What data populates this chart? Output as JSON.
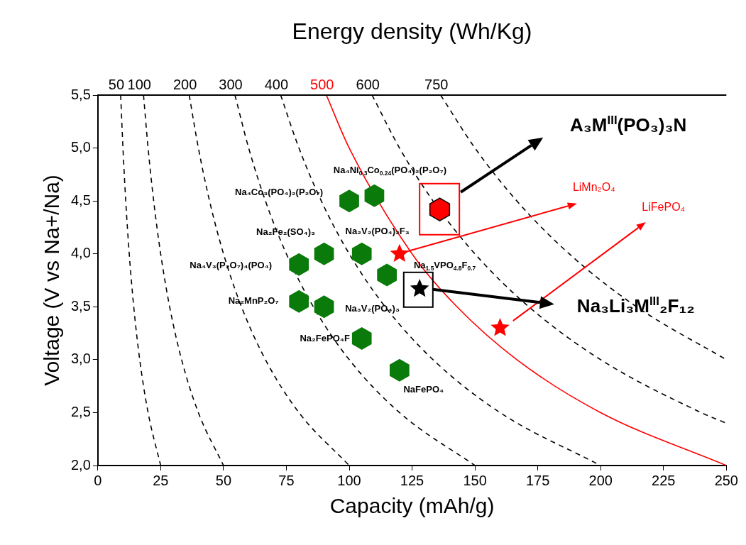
{
  "chart_data": {
    "type": "scatter",
    "xlabel": "Capacity (mAh/g)",
    "ylabel": "Voltage (V vs Na+/Na)",
    "x2label": "Energy density (Wh/Kg)",
    "xlim": [
      0,
      250
    ],
    "xticks": [
      0,
      25,
      50,
      75,
      100,
      125,
      150,
      175,
      200,
      225,
      250
    ],
    "ylim": [
      2,
      5.5
    ],
    "yticks": [
      {
        "value": 2,
        "label": "2,0"
      },
      {
        "value": 2.5,
        "label": "2,5"
      },
      {
        "value": 3,
        "label": "3,0"
      },
      {
        "value": 3.5,
        "label": "3,5"
      },
      {
        "value": 4,
        "label": "4,0"
      },
      {
        "value": 4.5,
        "label": "4,5"
      },
      {
        "value": 5,
        "label": "5,0"
      },
      {
        "value": 5.5,
        "label": "5,5"
      }
    ],
    "grid": false,
    "legend": false,
    "series": [
      {
        "type": "line",
        "name": "50",
        "color": "#000000",
        "line_style": "dashed",
        "marker": "none",
        "x": [
          9.09,
          10,
          11.11,
          12.5,
          14.29,
          16.67,
          20,
          25
        ],
        "values": [
          5.5,
          5,
          4.5,
          4,
          3.5,
          3,
          2.5,
          2
        ]
      },
      {
        "type": "line",
        "name": "100",
        "color": "#000000",
        "line_style": "dashed",
        "marker": "none",
        "x": [
          18.18,
          20,
          22.22,
          25,
          28.57,
          33.33,
          40,
          50
        ],
        "values": [
          5.5,
          5,
          4.5,
          4,
          3.5,
          3,
          2.5,
          2
        ]
      },
      {
        "type": "line",
        "name": "200",
        "color": "#000000",
        "line_style": "dashed",
        "marker": "none",
        "x": [
          36.36,
          40,
          44.44,
          50,
          57.14,
          66.67,
          80,
          100
        ],
        "values": [
          5.5,
          5,
          4.5,
          4,
          3.5,
          3,
          2.5,
          2
        ]
      },
      {
        "type": "line",
        "name": "300",
        "color": "#000000",
        "line_style": "dashed",
        "marker": "none",
        "x": [
          54.55,
          60,
          66.67,
          75,
          85.71,
          100,
          120,
          150
        ],
        "values": [
          5.5,
          5,
          4.5,
          4,
          3.5,
          3,
          2.5,
          2
        ]
      },
      {
        "type": "line",
        "name": "400",
        "color": "#000000",
        "line_style": "dashed",
        "marker": "none",
        "x": [
          72.73,
          80,
          88.89,
          100,
          114.29,
          133.33,
          160,
          200
        ],
        "values": [
          5.5,
          5,
          4.5,
          4,
          3.5,
          3,
          2.5,
          2
        ]
      },
      {
        "type": "line",
        "name": "500",
        "color": "#ff0000",
        "line_style": "solid",
        "marker": "none",
        "x": [
          90.91,
          100,
          125,
          142.86,
          166.67,
          200,
          250
        ],
        "values": [
          5.5,
          5,
          4,
          3.5,
          3,
          2.5,
          2
        ]
      },
      {
        "type": "line",
        "name": "600",
        "color": "#000000",
        "line_style": "dashed",
        "marker": "none",
        "x": [
          109.09,
          120,
          133.33,
          150,
          171.43,
          200,
          240,
          250
        ],
        "values": [
          5.5,
          5,
          4.5,
          4,
          3.5,
          3,
          2.5,
          2.4
        ]
      },
      {
        "type": "line",
        "name": "750",
        "color": "#000000",
        "line_style": "dashed",
        "marker": "none",
        "x": [
          136.36,
          150,
          166.67,
          187.5,
          214.29,
          250
        ],
        "values": [
          5.5,
          5,
          4.5,
          4,
          3.5,
          3
        ]
      },
      {
        "color": "#0a7a0a",
        "x": [
          110,
          100,
          90,
          105,
          80,
          115,
          80,
          90,
          105,
          120
        ],
        "values": [
          4.55,
          4.5,
          4.0,
          4.0,
          3.9,
          3.8,
          3.55,
          3.5,
          3.2,
          2.9
        ]
      },
      {
        "color": "#ff0000",
        "x": [
          136
        ],
        "values": [
          4.42
        ]
      },
      {
        "color": "#ff0000",
        "marker": "star",
        "x": [
          120,
          160
        ],
        "values": [
          4.0,
          3.3
        ]
      },
      {
        "color": "#000000",
        "marker": "star",
        "x": [
          128
        ],
        "values": [
          3.67
        ]
      }
    ],
    "annotations": [
      {
        "text": "Na₄Ni$_{0.3}$Co$_{0.24}$(PO₄)₂(P₂O₇)",
        "x": 110,
        "y": 4.55
      },
      {
        "text": "Na₄Co₃(PO₄)₂(P₂O₇)",
        "x": 100,
        "y": 4.5
      },
      {
        "text": "Na₂Fe₂(SO₄)₃",
        "x": 90,
        "y": 4.0
      },
      {
        "text": "Na₂V₂(PO₄)₂F₃",
        "x": 105,
        "y": 4.0
      },
      {
        "text": "Na₄V₃(P₂O₇)₄(PO₄)",
        "x": 80,
        "y": 3.9
      },
      "Na$_{1.5}$VPO$_{4.8}$F$_{0.7}$",
      {
        "text": "Na₂MnP₂O₇",
        "x": 80,
        "y": 3.55
      },
      {
        "text": "Na₃V₂(PO₄)₃",
        "x": 90,
        "y": 3.5
      },
      {
        "text": "Na₂FePO₄F",
        "x": 105,
        "y": 3.2
      },
      {
        "text": "NaFePO₄",
        "x": 120,
        "y": 2.9
      },
      {
        "text": "LiMn₂O₄",
        "x": 120,
        "y": 4.0
      },
      "LiFePO₄",
      "A₃M$^{III}$(PO₃)₃N",
      "Na₃Li₃M$^{III}$₂F₁₂"
    ]
  }
}
